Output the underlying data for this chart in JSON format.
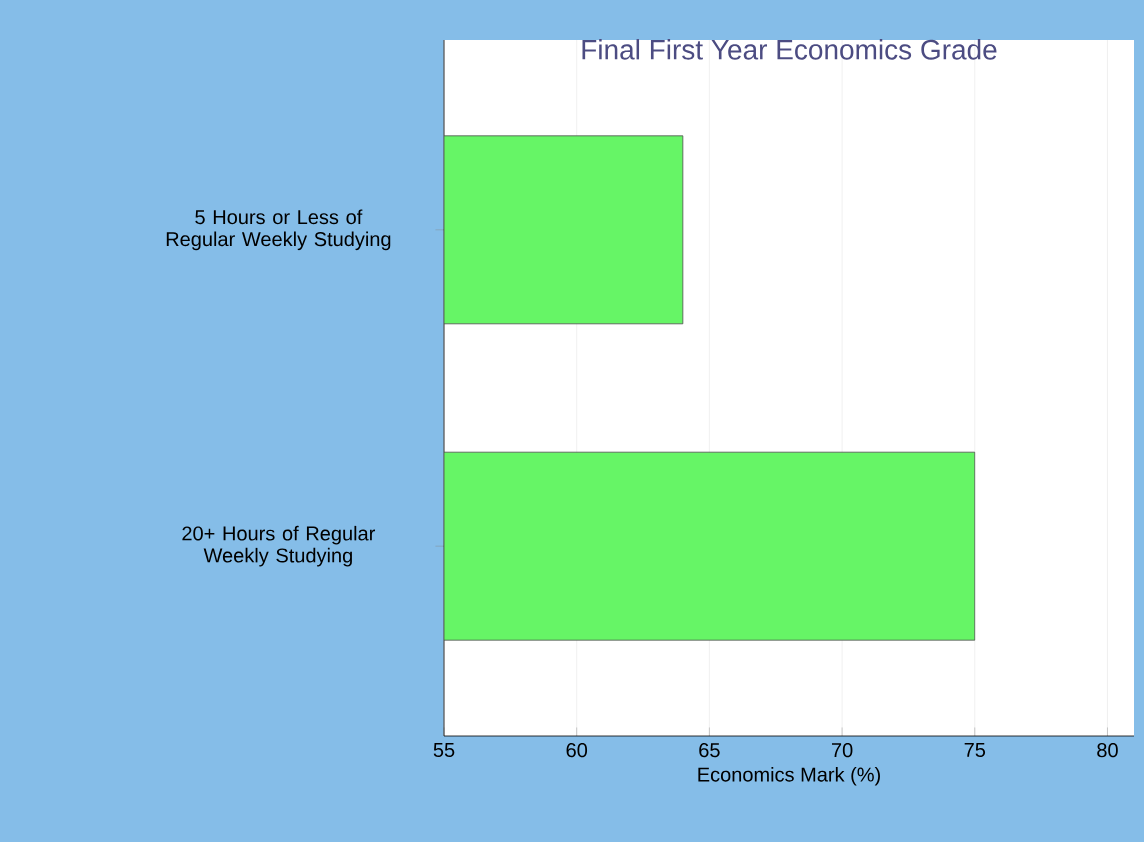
{
  "chart_data": {
    "type": "bar",
    "orientation": "horizontal",
    "title": "Final First Year Economics Grade",
    "xlabel": "Economics Mark (%)",
    "categories": [
      "5 Hours or Less of Regular Weekly Studying",
      "20+ Hours of Regular Weekly Studying"
    ],
    "values": [
      64,
      75
    ],
    "color": "#66f566",
    "xlim": [
      55,
      81
    ],
    "xticks": [
      55,
      60,
      65,
      70,
      75,
      80
    ],
    "grid": "x"
  }
}
